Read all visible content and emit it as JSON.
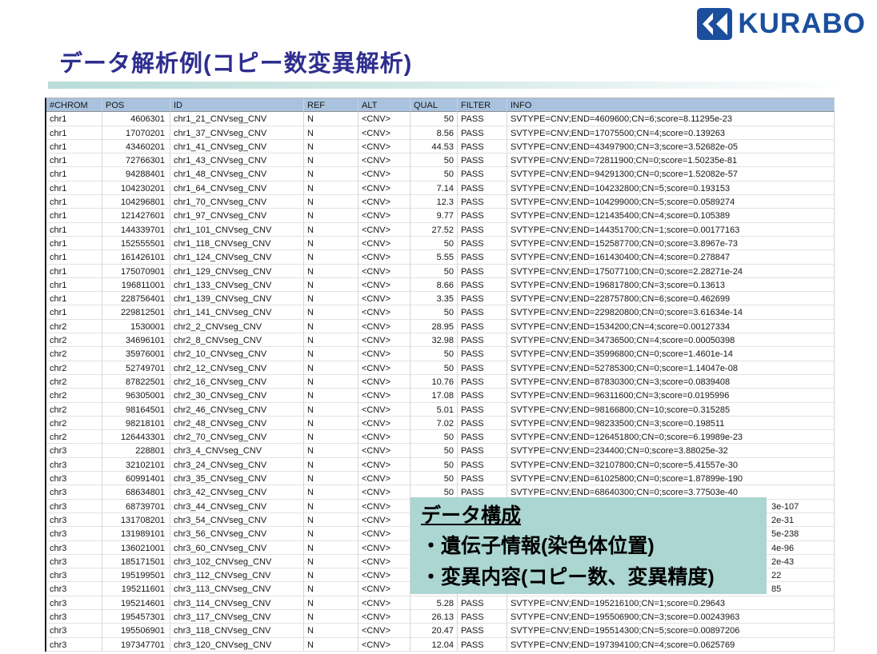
{
  "logo": {
    "text": "KURABO",
    "color": "#1b4f9e"
  },
  "title": "データ解析例(コピー数変異解析)",
  "colors": {
    "title_text": "#2e2e8f",
    "title_bar": "#b9dcd8",
    "table_header_bg": "#a9c2de",
    "overlay_bg": "#abd6d2",
    "logo_blue": "#1b4f9e"
  },
  "overlay": {
    "heading": "データ構成",
    "items": [
      "・遺伝子情報(染色体位置)",
      "・変異内容(コピー数、変異精度)"
    ]
  },
  "table": {
    "headers": [
      "#CHROM",
      "POS",
      "ID",
      "REF",
      "ALT",
      "QUAL",
      "FILTER",
      "INFO"
    ],
    "rows": [
      {
        "chrom": "chr1",
        "pos": "4606301",
        "id": "chr1_21_CNVseg_CNV",
        "ref": "N",
        "alt": "<CNV>",
        "qual": "50",
        "filter": "PASS",
        "info": "SVTYPE=CNV;END=4609600;CN=6;score=8.11295e-23",
        "covered": false
      },
      {
        "chrom": "chr1",
        "pos": "17070201",
        "id": "chr1_37_CNVseg_CNV",
        "ref": "N",
        "alt": "<CNV>",
        "qual": "8.56",
        "filter": "PASS",
        "info": "SVTYPE=CNV;END=17075500;CN=4;score=0.139263",
        "covered": false
      },
      {
        "chrom": "chr1",
        "pos": "43460201",
        "id": "chr1_41_CNVseg_CNV",
        "ref": "N",
        "alt": "<CNV>",
        "qual": "44.53",
        "filter": "PASS",
        "info": "SVTYPE=CNV;END=43497900;CN=3;score=3.52682e-05",
        "covered": false
      },
      {
        "chrom": "chr1",
        "pos": "72766301",
        "id": "chr1_43_CNVseg_CNV",
        "ref": "N",
        "alt": "<CNV>",
        "qual": "50",
        "filter": "PASS",
        "info": "SVTYPE=CNV;END=72811900;CN=0;score=1.50235e-81",
        "covered": false
      },
      {
        "chrom": "chr1",
        "pos": "94288401",
        "id": "chr1_48_CNVseg_CNV",
        "ref": "N",
        "alt": "<CNV>",
        "qual": "50",
        "filter": "PASS",
        "info": "SVTYPE=CNV;END=94291300;CN=0;score=1.52082e-57",
        "covered": false
      },
      {
        "chrom": "chr1",
        "pos": "104230201",
        "id": "chr1_64_CNVseg_CNV",
        "ref": "N",
        "alt": "<CNV>",
        "qual": "7.14",
        "filter": "PASS",
        "info": "SVTYPE=CNV;END=104232800;CN=5;score=0.193153",
        "covered": false
      },
      {
        "chrom": "chr1",
        "pos": "104296801",
        "id": "chr1_70_CNVseg_CNV",
        "ref": "N",
        "alt": "<CNV>",
        "qual": "12.3",
        "filter": "PASS",
        "info": "SVTYPE=CNV;END=104299000;CN=5;score=0.0589274",
        "covered": false
      },
      {
        "chrom": "chr1",
        "pos": "121427601",
        "id": "chr1_97_CNVseg_CNV",
        "ref": "N",
        "alt": "<CNV>",
        "qual": "9.77",
        "filter": "PASS",
        "info": "SVTYPE=CNV;END=121435400;CN=4;score=0.105389",
        "covered": false
      },
      {
        "chrom": "chr1",
        "pos": "144339701",
        "id": "chr1_101_CNVseg_CNV",
        "ref": "N",
        "alt": "<CNV>",
        "qual": "27.52",
        "filter": "PASS",
        "info": "SVTYPE=CNV;END=144351700;CN=1;score=0.00177163",
        "covered": false
      },
      {
        "chrom": "chr1",
        "pos": "152555501",
        "id": "chr1_118_CNVseg_CNV",
        "ref": "N",
        "alt": "<CNV>",
        "qual": "50",
        "filter": "PASS",
        "info": "SVTYPE=CNV;END=152587700;CN=0;score=3.8967e-73",
        "covered": false
      },
      {
        "chrom": "chr1",
        "pos": "161426101",
        "id": "chr1_124_CNVseg_CNV",
        "ref": "N",
        "alt": "<CNV>",
        "qual": "5.55",
        "filter": "PASS",
        "info": "SVTYPE=CNV;END=161430400;CN=4;score=0.278847",
        "covered": false
      },
      {
        "chrom": "chr1",
        "pos": "175070901",
        "id": "chr1_129_CNVseg_CNV",
        "ref": "N",
        "alt": "<CNV>",
        "qual": "50",
        "filter": "PASS",
        "info": "SVTYPE=CNV;END=175077100;CN=0;score=2.28271e-24",
        "covered": false
      },
      {
        "chrom": "chr1",
        "pos": "196811001",
        "id": "chr1_133_CNVseg_CNV",
        "ref": "N",
        "alt": "<CNV>",
        "qual": "8.66",
        "filter": "PASS",
        "info": "SVTYPE=CNV;END=196817800;CN=3;score=0.13613",
        "covered": false
      },
      {
        "chrom": "chr1",
        "pos": "228756401",
        "id": "chr1_139_CNVseg_CNV",
        "ref": "N",
        "alt": "<CNV>",
        "qual": "3.35",
        "filter": "PASS",
        "info": "SVTYPE=CNV;END=228757800;CN=6;score=0.462699",
        "covered": false
      },
      {
        "chrom": "chr1",
        "pos": "229812501",
        "id": "chr1_141_CNVseg_CNV",
        "ref": "N",
        "alt": "<CNV>",
        "qual": "50",
        "filter": "PASS",
        "info": "SVTYPE=CNV;END=229820800;CN=0;score=3.61634e-14",
        "covered": false
      },
      {
        "chrom": "chr2",
        "pos": "1530001",
        "id": "chr2_2_CNVseg_CNV",
        "ref": "N",
        "alt": "<CNV>",
        "qual": "28.95",
        "filter": "PASS",
        "info": "SVTYPE=CNV;END=1534200;CN=4;score=0.00127334",
        "covered": false
      },
      {
        "chrom": "chr2",
        "pos": "34696101",
        "id": "chr2_8_CNVseg_CNV",
        "ref": "N",
        "alt": "<CNV>",
        "qual": "32.98",
        "filter": "PASS",
        "info": "SVTYPE=CNV;END=34736500;CN=4;score=0.00050398",
        "covered": false
      },
      {
        "chrom": "chr2",
        "pos": "35976001",
        "id": "chr2_10_CNVseg_CNV",
        "ref": "N",
        "alt": "<CNV>",
        "qual": "50",
        "filter": "PASS",
        "info": "SVTYPE=CNV;END=35996800;CN=0;score=1.4601e-14",
        "covered": false
      },
      {
        "chrom": "chr2",
        "pos": "52749701",
        "id": "chr2_12_CNVseg_CNV",
        "ref": "N",
        "alt": "<CNV>",
        "qual": "50",
        "filter": "PASS",
        "info": "SVTYPE=CNV;END=52785300;CN=0;score=1.14047e-08",
        "covered": false
      },
      {
        "chrom": "chr2",
        "pos": "87822501",
        "id": "chr2_16_CNVseg_CNV",
        "ref": "N",
        "alt": "<CNV>",
        "qual": "10.76",
        "filter": "PASS",
        "info": "SVTYPE=CNV;END=87830300;CN=3;score=0.0839408",
        "covered": false
      },
      {
        "chrom": "chr2",
        "pos": "96305001",
        "id": "chr2_30_CNVseg_CNV",
        "ref": "N",
        "alt": "<CNV>",
        "qual": "17.08",
        "filter": "PASS",
        "info": "SVTYPE=CNV;END=96311600;CN=3;score=0.0195996",
        "covered": false
      },
      {
        "chrom": "chr2",
        "pos": "98164501",
        "id": "chr2_46_CNVseg_CNV",
        "ref": "N",
        "alt": "<CNV>",
        "qual": "5.01",
        "filter": "PASS",
        "info": "SVTYPE=CNV;END=98166800;CN=10;score=0.315285",
        "covered": false
      },
      {
        "chrom": "chr2",
        "pos": "98218101",
        "id": "chr2_48_CNVseg_CNV",
        "ref": "N",
        "alt": "<CNV>",
        "qual": "7.02",
        "filter": "PASS",
        "info": "SVTYPE=CNV;END=98233500;CN=3;score=0.198511",
        "covered": false
      },
      {
        "chrom": "chr2",
        "pos": "126443301",
        "id": "chr2_70_CNVseg_CNV",
        "ref": "N",
        "alt": "<CNV>",
        "qual": "50",
        "filter": "PASS",
        "info": "SVTYPE=CNV;END=126451800;CN=0;score=6.19989e-23",
        "covered": false
      },
      {
        "chrom": "chr3",
        "pos": "228801",
        "id": "chr3_4_CNVseg_CNV",
        "ref": "N",
        "alt": "<CNV>",
        "qual": "50",
        "filter": "PASS",
        "info": "SVTYPE=CNV;END=234400;CN=0;score=3.88025e-32",
        "covered": false
      },
      {
        "chrom": "chr3",
        "pos": "32102101",
        "id": "chr3_24_CNVseg_CNV",
        "ref": "N",
        "alt": "<CNV>",
        "qual": "50",
        "filter": "PASS",
        "info": "SVTYPE=CNV;END=32107800;CN=0;score=5.41557e-30",
        "covered": false
      },
      {
        "chrom": "chr3",
        "pos": "60991401",
        "id": "chr3_35_CNVseg_CNV",
        "ref": "N",
        "alt": "<CNV>",
        "qual": "50",
        "filter": "PASS",
        "info": "SVTYPE=CNV;END=61025800;CN=0;score=1.87899e-190",
        "covered": false
      },
      {
        "chrom": "chr3",
        "pos": "68634801",
        "id": "chr3_42_CNVseg_CNV",
        "ref": "N",
        "alt": "<CNV>",
        "qual": "50",
        "filter": "PASS",
        "info": "SVTYPE=CNV;END=68640300;CN=0;score=3.77503e-40",
        "covered": false
      },
      {
        "chrom": "chr3",
        "pos": "68739701",
        "id": "chr3_44_CNVseg_CNV",
        "ref": "N",
        "alt": "<CNV>",
        "qual": "",
        "filter": "",
        "info": "3e-107",
        "covered": true
      },
      {
        "chrom": "chr3",
        "pos": "131708201",
        "id": "chr3_54_CNVseg_CNV",
        "ref": "N",
        "alt": "<CNV>",
        "qual": "",
        "filter": "",
        "info": "2e-31",
        "covered": true
      },
      {
        "chrom": "chr3",
        "pos": "131989101",
        "id": "chr3_56_CNVseg_CNV",
        "ref": "N",
        "alt": "<CNV>",
        "qual": "",
        "filter": "",
        "info": "5e-238",
        "covered": true
      },
      {
        "chrom": "chr3",
        "pos": "136021001",
        "id": "chr3_60_CNVseg_CNV",
        "ref": "N",
        "alt": "<CNV>",
        "qual": "",
        "filter": "",
        "info": "4e-96",
        "covered": true
      },
      {
        "chrom": "chr3",
        "pos": "185171501",
        "id": "chr3_102_CNVseg_CNV",
        "ref": "N",
        "alt": "<CNV>",
        "qual": "",
        "filter": "",
        "info": "2e-43",
        "covered": true
      },
      {
        "chrom": "chr3",
        "pos": "195199501",
        "id": "chr3_112_CNVseg_CNV",
        "ref": "N",
        "alt": "<CNV>",
        "qual": "",
        "filter": "",
        "info": "22",
        "covered": true
      },
      {
        "chrom": "chr3",
        "pos": "195211601",
        "id": "chr3_113_CNVseg_CNV",
        "ref": "N",
        "alt": "<CNV>",
        "qual": "",
        "filter": "",
        "info": "85",
        "covered": true
      },
      {
        "chrom": "chr3",
        "pos": "195214601",
        "id": "chr3_114_CNVseg_CNV",
        "ref": "N",
        "alt": "<CNV>",
        "qual": "5.28",
        "filter": "PASS",
        "info": "SVTYPE=CNV;END=195216100;CN=1;score=0.29643",
        "covered": false
      },
      {
        "chrom": "chr3",
        "pos": "195457301",
        "id": "chr3_117_CNVseg_CNV",
        "ref": "N",
        "alt": "<CNV>",
        "qual": "26.13",
        "filter": "PASS",
        "info": "SVTYPE=CNV;END=195506900;CN=3;score=0.00243963",
        "covered": false
      },
      {
        "chrom": "chr3",
        "pos": "195506901",
        "id": "chr3_118_CNVseg_CNV",
        "ref": "N",
        "alt": "<CNV>",
        "qual": "20.47",
        "filter": "PASS",
        "info": "SVTYPE=CNV;END=195514300;CN=5;score=0.00897206",
        "covered": false
      },
      {
        "chrom": "chr3",
        "pos": "197347701",
        "id": "chr3_120_CNVseg_CNV",
        "ref": "N",
        "alt": "<CNV>",
        "qual": "12.04",
        "filter": "PASS",
        "info": "SVTYPE=CNV;END=197394100;CN=4;score=0.0625769",
        "covered": false
      }
    ]
  }
}
